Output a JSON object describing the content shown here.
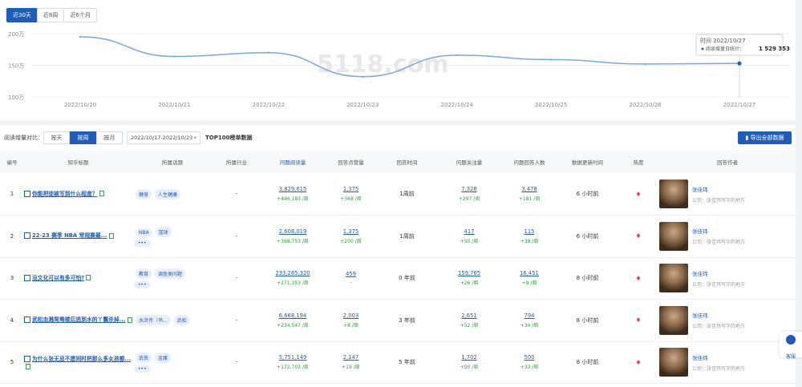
{
  "range_tabs": [
    "近30天",
    "近8周",
    "近6个月"
  ],
  "chart_data": {
    "type": "line",
    "x": [
      "2022/10/20",
      "2022/10/21",
      "2022/10/22",
      "2022/10/23",
      "2022/10/24",
      "2022/10/25",
      "2022/10/26",
      "2022/10/27"
    ],
    "values": [
      1950000,
      1640000,
      1700000,
      1320000,
      1660000,
      1590000,
      1520000,
      1529353
    ],
    "yticks": [
      "200万",
      "150万",
      "100万"
    ],
    "ylim": [
      1000000,
      2000000
    ],
    "tooltip": {
      "time": "时间 2022/10/27",
      "series": "阅读增量日统计：",
      "value": "1 529 353"
    },
    "watermark": "5118.com",
    "line_color": "#7aa7e0"
  },
  "filter": {
    "label": "阅读增量对比：",
    "segments": [
      "按天",
      "按周",
      "按月"
    ],
    "date_range": "2022/10/17-2022/10/23",
    "caret": "▾",
    "top_label": "TOP100榜单数据",
    "export": "▮ 导出全部数据"
  },
  "columns": [
    "编号",
    "知乎标题",
    "所属话题",
    "所属行业",
    "问题阅读量",
    "回答点赞量",
    "回答时间",
    "问题关注量",
    "问题回答人数",
    "数据更新时间",
    "热度",
    "回答作者"
  ],
  "rows": [
    {
      "no": "1",
      "title": "你能把徒被写到什么程度？",
      "tags": [
        "健身",
        "人生健康"
      ],
      "more": "",
      "industry": "-",
      "reads": "3,829,615",
      "reads_d": "+446,183 /周",
      "likes": "1,375",
      "likes_d": "+368 /周",
      "time": "1周前",
      "follows": "7,328",
      "follows_d": "+297 /周",
      "answers": "3,478",
      "answers_d": "+181 /周",
      "update": "6 小时前",
      "heat": "♦",
      "author": "张佳玮",
      "corp": "公司：张佳玮写字的地方"
    },
    {
      "no": "2",
      "title": "22-23 赛季 NBA 常规赛最...",
      "tags": [
        "NBA",
        "篮球"
      ],
      "more": "•••",
      "industry": "-",
      "reads": "2,608,019",
      "reads_d": "+368,753 /周",
      "likes": "1,375",
      "likes_d": "+200 /周",
      "time": "1周前",
      "follows": "417",
      "follows_d": "+50 /周",
      "answers": "115",
      "answers_d": "+39 /周",
      "update": "6 小时前",
      "heat": "♦",
      "author": "张佳玮",
      "corp": "公司：张佳玮写字的地方"
    },
    {
      "no": "3",
      "title": "没文化可以有多可怕?",
      "tags": [
        "教育",
        "调查类问题"
      ],
      "more": "•••",
      "industry": "-",
      "reads": "233,285,320",
      "reads_d": "+271,353 /周",
      "likes": "459",
      "likes_d": "-",
      "time": "0 年前",
      "follows": "159,765",
      "follows_d": "+26 /周",
      "answers": "16,451",
      "answers_d": "+9 /周",
      "update": "8 小时前",
      "heat": "♦",
      "author": "张佳玮",
      "corp": "公司：张佳玮写字的地方"
    },
    {
      "no": "4",
      "title": "武松血溅鸳鸯楼后逃到水的丫鬟杀掉...",
      "tags": [
        "水浒传（书...",
        "武松"
      ],
      "more": "",
      "industry": "-",
      "reads": "6,668,194",
      "reads_d": "+234,547 /周",
      "likes": "2,003",
      "likes_d": "+8 /周",
      "time": "3 年前",
      "follows": "2,651",
      "follows_d": "+52 /周",
      "answers": "794",
      "answers_d": "+34 /周",
      "update": "8 小时前",
      "heat": "♦",
      "author": "张佳玮",
      "corp": "公司：张佳玮写字的地方"
    },
    {
      "no": "5",
      "title": "为什么张无忌不愿同时把那么多女孩都...",
      "tags": [
        "武侠",
        "金庸"
      ],
      "more": "•••",
      "industry": "-",
      "reads": "5,751,149",
      "reads_d": "+172,703 /周",
      "likes": "2,147",
      "likes_d": "+19 /周",
      "time": "5 年前",
      "follows": "1,702",
      "follows_d": "+50 /周",
      "answers": "500",
      "answers_d": "+33 /周",
      "update": "8 小时前",
      "heat": "♦",
      "author": "张佳玮",
      "corp": "公司：张佳玮写字的地方"
    }
  ],
  "customer_service": "客服",
  "accent": "#1d5db9"
}
